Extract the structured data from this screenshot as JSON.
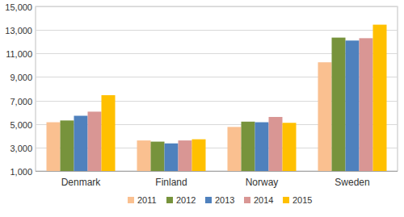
{
  "chart_data": {
    "type": "bar",
    "categories": [
      "Denmark",
      "Finland",
      "Norway",
      "Sweden"
    ],
    "series": [
      {
        "name": "2011",
        "color": "#fac090",
        "values": [
          5150,
          3600,
          4750,
          10250
        ]
      },
      {
        "name": "2012",
        "color": "#77933c",
        "values": [
          5300,
          3500,
          5200,
          12350
        ]
      },
      {
        "name": "2013",
        "color": "#4f81bd",
        "values": [
          5700,
          3350,
          5150,
          12100
        ]
      },
      {
        "name": "2014",
        "color": "#d99694",
        "values": [
          6050,
          3600,
          5600,
          12300
        ]
      },
      {
        "name": "2015",
        "color": "#ffc000",
        "values": [
          7450,
          3700,
          5100,
          13450
        ]
      }
    ],
    "ylim": [
      1000,
      15000
    ],
    "yticks": [
      {
        "value": 1000,
        "label": "1,000"
      },
      {
        "value": 3000,
        "label": "3,000"
      },
      {
        "value": 5000,
        "label": "5,000"
      },
      {
        "value": 7000,
        "label": "7,000"
      },
      {
        "value": 9000,
        "label": "9,000"
      },
      {
        "value": 11000,
        "label": "11,000"
      },
      {
        "value": 13000,
        "label": "13,000"
      },
      {
        "value": 15000,
        "label": "15,000"
      }
    ],
    "grid": true,
    "legend": "bottom"
  }
}
